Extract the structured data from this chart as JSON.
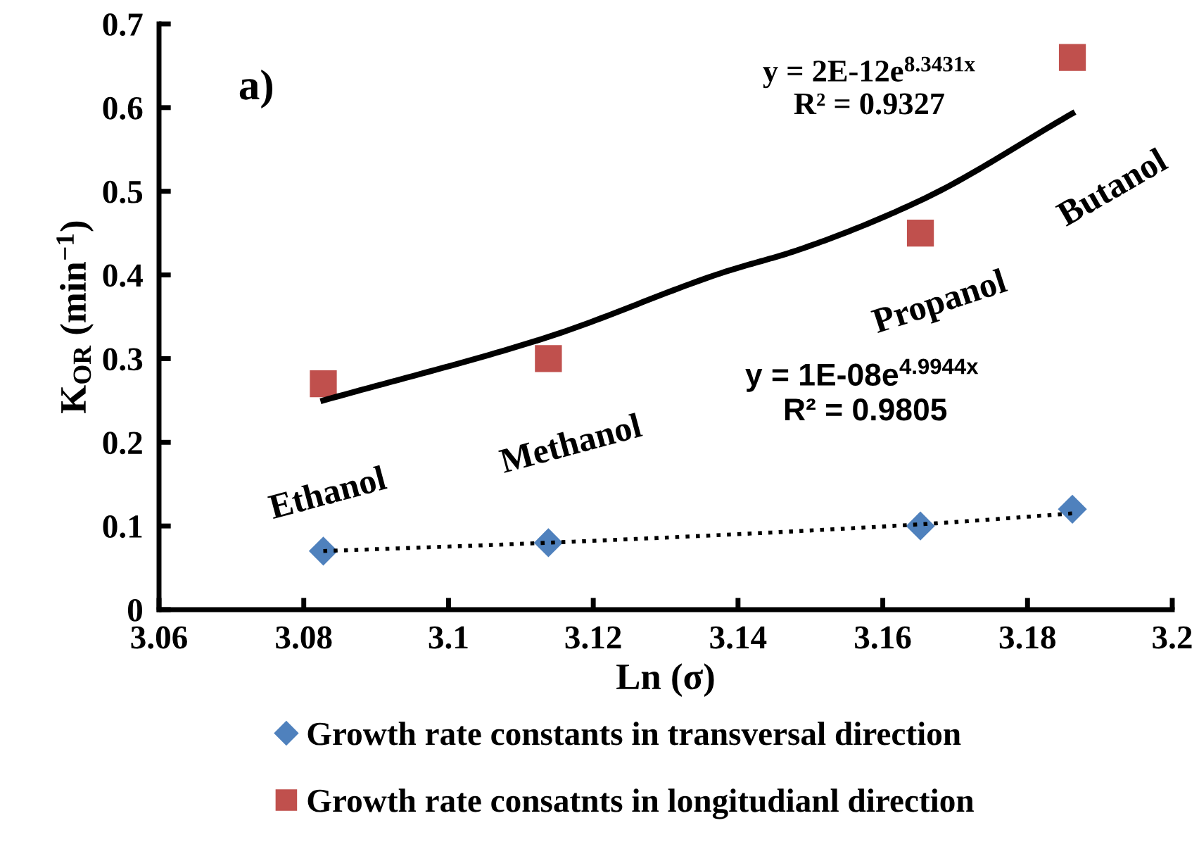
{
  "chart_data": {
    "type": "scatter",
    "xlabel": "Ln (σ)",
    "ylabel": "K$_{OR}$ (min$^{−1}$)",
    "xlim": [
      3.06,
      3.2
    ],
    "xticks": [
      3.06,
      3.08,
      3.1,
      3.12,
      3.14,
      3.16,
      3.18,
      3.2
    ],
    "ylim": [
      0,
      0.7
    ],
    "yticks": [
      0,
      0.1,
      0.2,
      0.3,
      0.4,
      0.5,
      0.6,
      0.7
    ],
    "grid": false,
    "legend": "bottom",
    "series": [
      {
        "name": "Growth rate constants in transversal direction",
        "color": "#4f81bd",
        "marker": "diamond",
        "x": [
          3.0827,
          3.1138,
          3.1652,
          3.1862
        ],
        "values": [
          0.07,
          0.08,
          0.1,
          0.12
        ]
      },
      {
        "name": "Growth rate consatnts in longitudianl direction",
        "color": "#c0504d",
        "marker": "square",
        "x": [
          3.0827,
          3.1138,
          3.1652,
          3.1862
        ],
        "values": [
          0.27,
          0.3,
          0.45,
          0.66
        ]
      },
      {
        "type": "line",
        "color": "#000000",
        "line_style": "dotted",
        "marker": "none",
        "x": [
          3.0827,
          3.1138,
          3.1652,
          3.1862
        ],
        "values": [
          0.07,
          0.08,
          0.102,
          0.115
        ]
      },
      {
        "type": "line",
        "color": "#000000",
        "line_style": "solid",
        "marker": "none",
        "x": [
          3.0827,
          3.1138,
          3.1383,
          3.148,
          3.1652,
          3.1862
        ],
        "values": [
          0.25,
          0.326,
          0.404,
          0.429,
          0.489,
          0.593
        ]
      }
    ],
    "annotations": [
      "a)",
      "Ethanol",
      "Methanol",
      "Propanol",
      "Butanol",
      "y = 2E-12e$^{8.3431x}$",
      "R² = 0.9327",
      "y = 1E-08e$^{4.9944x}$",
      "R² = 0.9805"
    ]
  }
}
